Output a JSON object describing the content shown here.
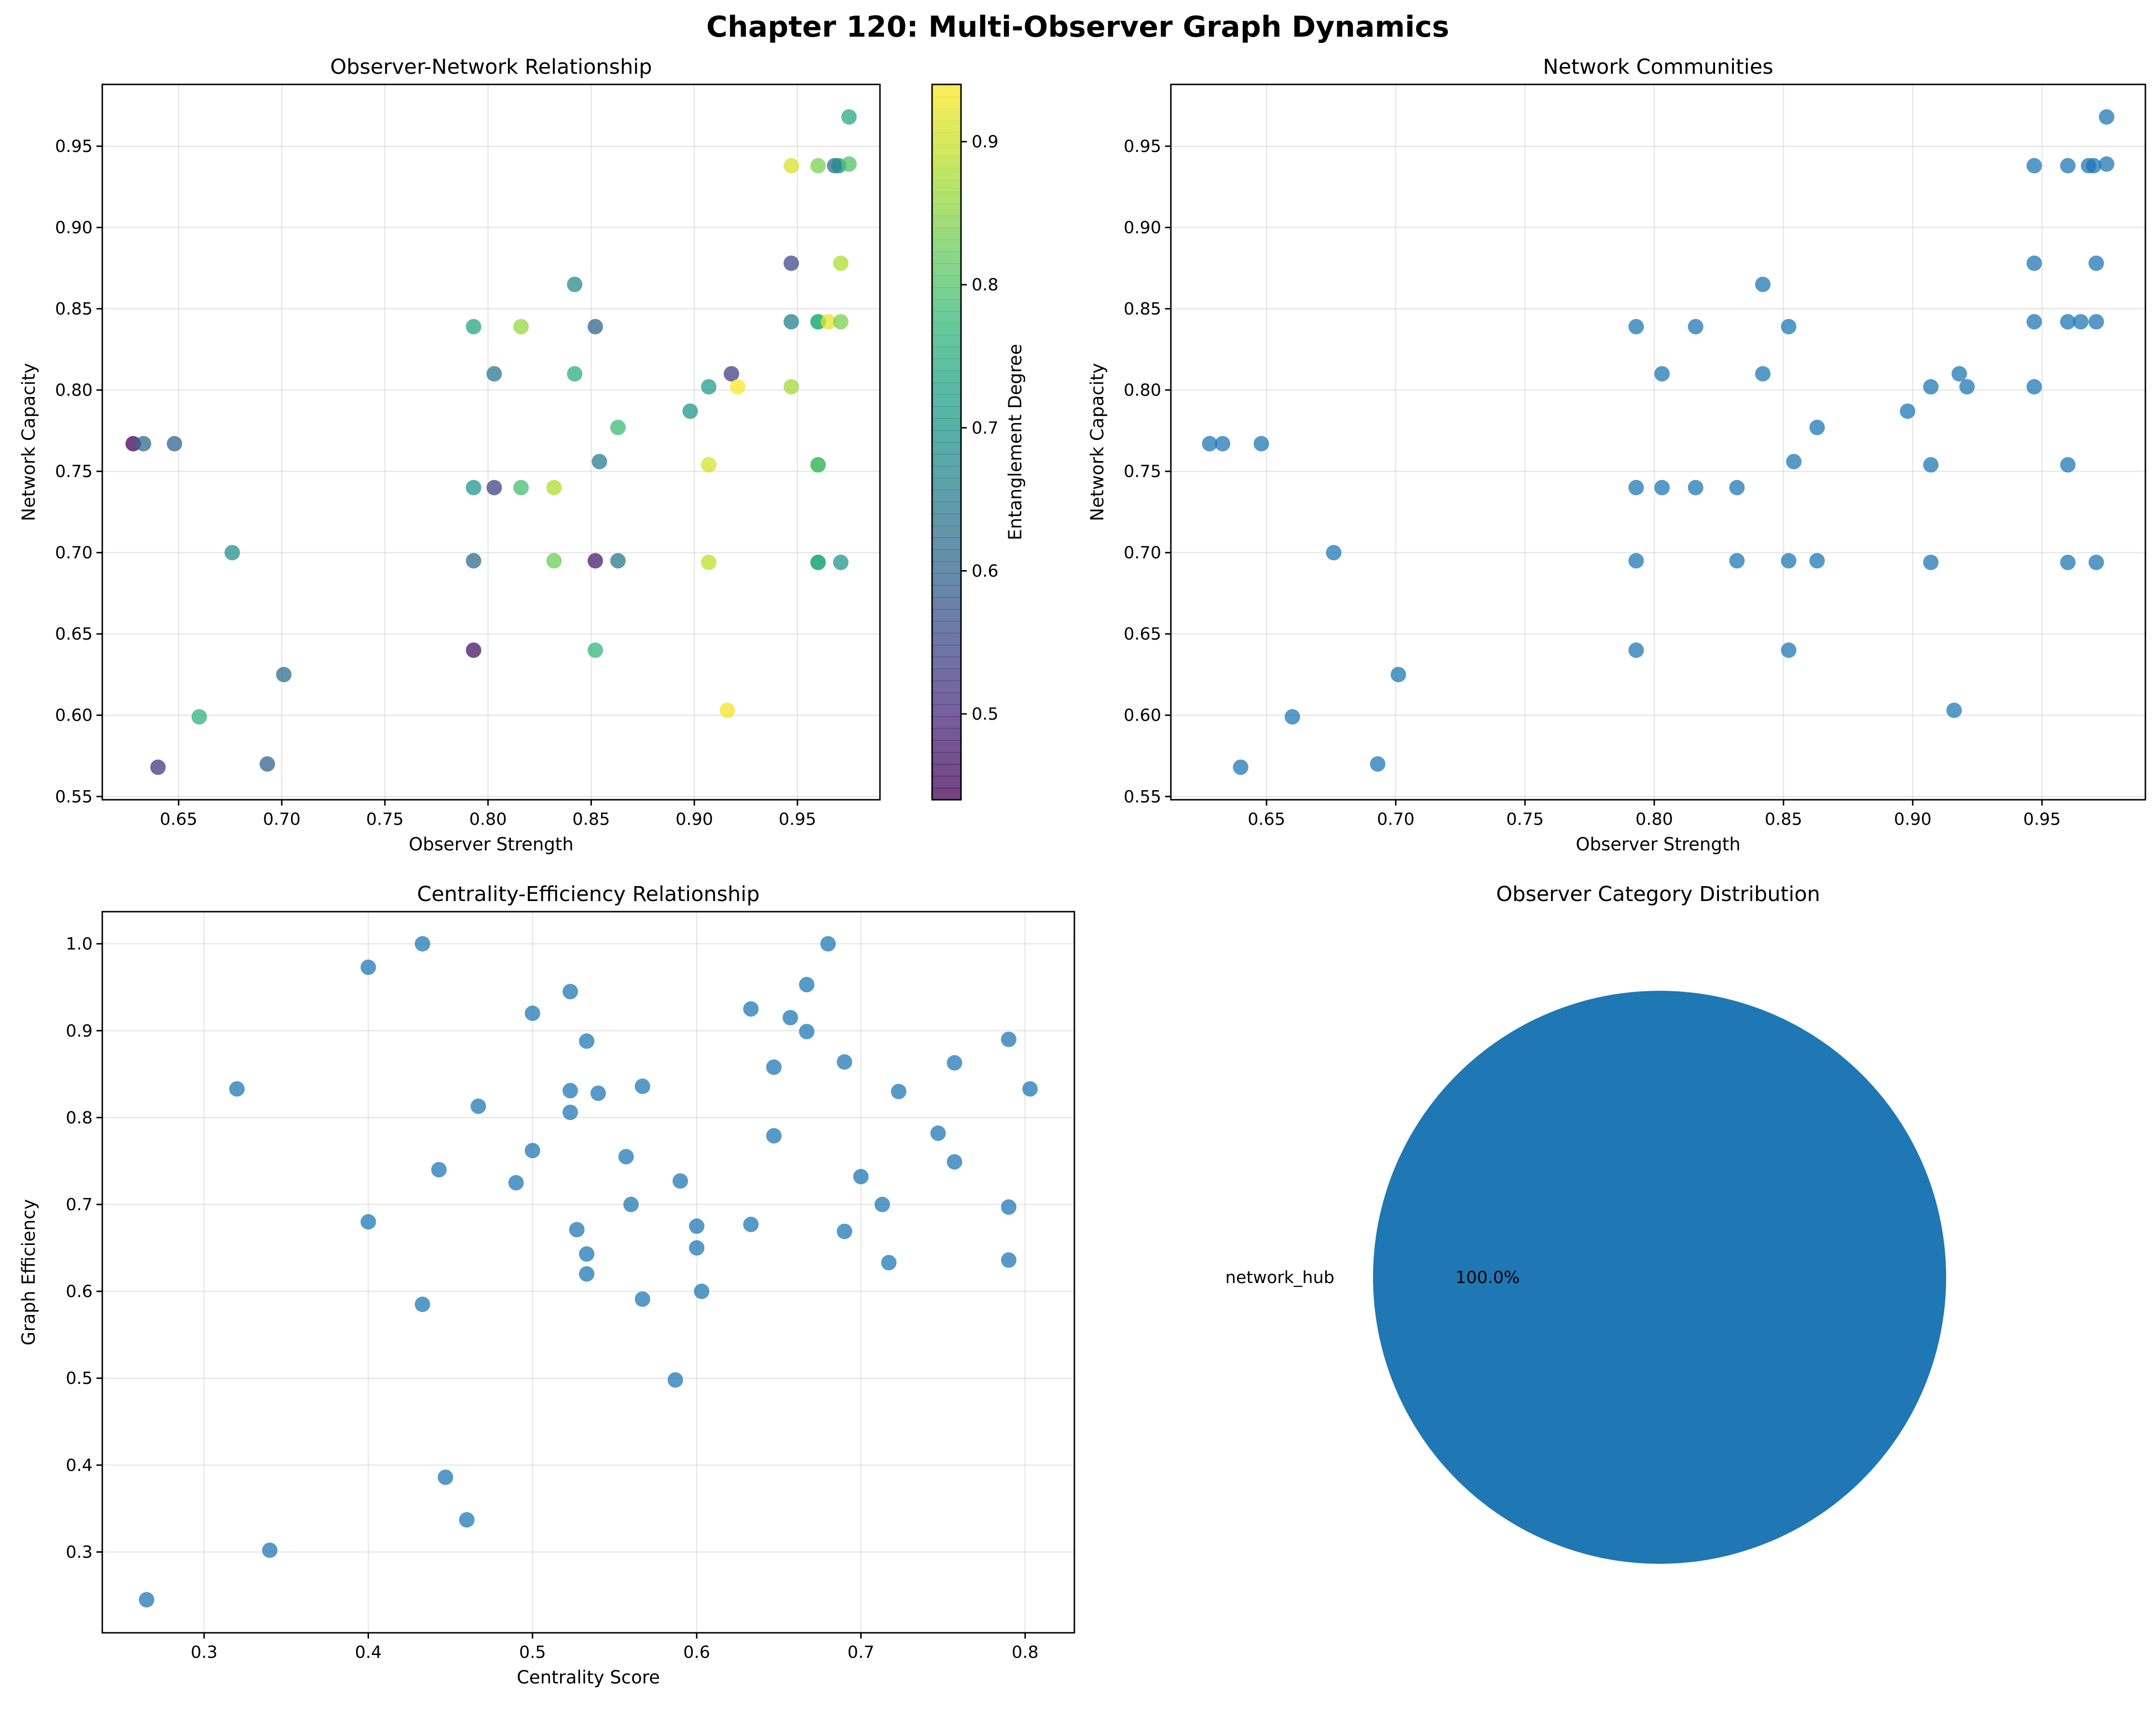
{
  "figure": {
    "title": "Chapter 120: Multi-Observer Graph Dynamics",
    "colors": {
      "point": "#1f77b4",
      "pie": "#1f77b4"
    }
  },
  "chart_data": [
    {
      "type": "scatter",
      "title": "Observer-Network Relationship",
      "xlabel": "Observer Strength",
      "ylabel": "Network Capacity",
      "xlim": [
        0.613,
        0.99
      ],
      "ylim": [
        0.548,
        0.988
      ],
      "xticks": [
        "0.65",
        "0.70",
        "0.75",
        "0.80",
        "0.85",
        "0.90",
        "0.95"
      ],
      "yticks": [
        "0.55",
        "0.60",
        "0.65",
        "0.70",
        "0.75",
        "0.80",
        "0.85",
        "0.90",
        "0.95"
      ],
      "colorbar": {
        "label": "Entanglement Degree",
        "colormap": "viridis",
        "range": [
          0.44,
          0.94
        ],
        "ticks": [
          "0.5",
          "0.6",
          "0.7",
          "0.8",
          "0.9"
        ]
      },
      "points": [
        {
          "x": 0.628,
          "y": 0.767,
          "c": 0.44
        },
        {
          "x": 0.633,
          "y": 0.767,
          "c": 0.61
        },
        {
          "x": 0.648,
          "y": 0.767,
          "c": 0.6
        },
        {
          "x": 0.64,
          "y": 0.568,
          "c": 0.52
        },
        {
          "x": 0.66,
          "y": 0.599,
          "c": 0.76
        },
        {
          "x": 0.676,
          "y": 0.7,
          "c": 0.69
        },
        {
          "x": 0.701,
          "y": 0.625,
          "c": 0.62
        },
        {
          "x": 0.693,
          "y": 0.57,
          "c": 0.6
        },
        {
          "x": 0.793,
          "y": 0.839,
          "c": 0.73
        },
        {
          "x": 0.793,
          "y": 0.74,
          "c": 0.7
        },
        {
          "x": 0.793,
          "y": 0.695,
          "c": 0.62
        },
        {
          "x": 0.793,
          "y": 0.64,
          "c": 0.47
        },
        {
          "x": 0.803,
          "y": 0.81,
          "c": 0.64
        },
        {
          "x": 0.803,
          "y": 0.74,
          "c": 0.54
        },
        {
          "x": 0.816,
          "y": 0.839,
          "c": 0.86
        },
        {
          "x": 0.816,
          "y": 0.74,
          "c": 0.79
        },
        {
          "x": 0.832,
          "y": 0.74,
          "c": 0.88
        },
        {
          "x": 0.832,
          "y": 0.695,
          "c": 0.83
        },
        {
          "x": 0.842,
          "y": 0.865,
          "c": 0.68
        },
        {
          "x": 0.842,
          "y": 0.81,
          "c": 0.75
        },
        {
          "x": 0.852,
          "y": 0.839,
          "c": 0.6
        },
        {
          "x": 0.854,
          "y": 0.756,
          "c": 0.65
        },
        {
          "x": 0.852,
          "y": 0.695,
          "c": 0.48
        },
        {
          "x": 0.852,
          "y": 0.64,
          "c": 0.77
        },
        {
          "x": 0.863,
          "y": 0.777,
          "c": 0.78
        },
        {
          "x": 0.863,
          "y": 0.695,
          "c": 0.64
        },
        {
          "x": 0.898,
          "y": 0.787,
          "c": 0.7
        },
        {
          "x": 0.907,
          "y": 0.802,
          "c": 0.72
        },
        {
          "x": 0.907,
          "y": 0.754,
          "c": 0.91
        },
        {
          "x": 0.907,
          "y": 0.694,
          "c": 0.89
        },
        {
          "x": 0.918,
          "y": 0.81,
          "c": 0.53
        },
        {
          "x": 0.921,
          "y": 0.802,
          "c": 0.94
        },
        {
          "x": 0.916,
          "y": 0.603,
          "c": 0.93
        },
        {
          "x": 0.947,
          "y": 0.938,
          "c": 0.91
        },
        {
          "x": 0.947,
          "y": 0.878,
          "c": 0.55
        },
        {
          "x": 0.947,
          "y": 0.842,
          "c": 0.66
        },
        {
          "x": 0.947,
          "y": 0.802,
          "c": 0.87
        },
        {
          "x": 0.96,
          "y": 0.938,
          "c": 0.84
        },
        {
          "x": 0.96,
          "y": 0.842,
          "c": 0.74
        },
        {
          "x": 0.96,
          "y": 0.842,
          "c": 0.77
        },
        {
          "x": 0.96,
          "y": 0.754,
          "c": 0.82
        },
        {
          "x": 0.96,
          "y": 0.754,
          "c": 0.79
        },
        {
          "x": 0.96,
          "y": 0.694,
          "c": 0.77
        },
        {
          "x": 0.96,
          "y": 0.694,
          "c": 0.74
        },
        {
          "x": 0.965,
          "y": 0.842,
          "c": 0.92
        },
        {
          "x": 0.968,
          "y": 0.938,
          "c": 0.62
        },
        {
          "x": 0.97,
          "y": 0.938,
          "c": 0.68
        },
        {
          "x": 0.971,
          "y": 0.878,
          "c": 0.88
        },
        {
          "x": 0.971,
          "y": 0.842,
          "c": 0.84
        },
        {
          "x": 0.971,
          "y": 0.694,
          "c": 0.7
        },
        {
          "x": 0.975,
          "y": 0.939,
          "c": 0.8
        },
        {
          "x": 0.975,
          "y": 0.968,
          "c": 0.74
        }
      ]
    },
    {
      "type": "scatter",
      "title": "Network Communities",
      "xlabel": "Observer Strength",
      "ylabel": "Network Capacity",
      "xlim": [
        0.613,
        0.99
      ],
      "ylim": [
        0.548,
        0.988
      ],
      "xticks": [
        "0.65",
        "0.70",
        "0.75",
        "0.80",
        "0.85",
        "0.90",
        "0.95"
      ],
      "yticks": [
        "0.55",
        "0.60",
        "0.65",
        "0.70",
        "0.75",
        "0.80",
        "0.85",
        "0.90",
        "0.95"
      ],
      "points": [
        {
          "x": 0.628,
          "y": 0.767
        },
        {
          "x": 0.633,
          "y": 0.767
        },
        {
          "x": 0.648,
          "y": 0.767
        },
        {
          "x": 0.64,
          "y": 0.568
        },
        {
          "x": 0.66,
          "y": 0.599
        },
        {
          "x": 0.676,
          "y": 0.7
        },
        {
          "x": 0.701,
          "y": 0.625
        },
        {
          "x": 0.693,
          "y": 0.57
        },
        {
          "x": 0.793,
          "y": 0.839
        },
        {
          "x": 0.793,
          "y": 0.74
        },
        {
          "x": 0.793,
          "y": 0.695
        },
        {
          "x": 0.793,
          "y": 0.64
        },
        {
          "x": 0.803,
          "y": 0.81
        },
        {
          "x": 0.803,
          "y": 0.74
        },
        {
          "x": 0.816,
          "y": 0.839
        },
        {
          "x": 0.816,
          "y": 0.74
        },
        {
          "x": 0.832,
          "y": 0.74
        },
        {
          "x": 0.832,
          "y": 0.695
        },
        {
          "x": 0.842,
          "y": 0.865
        },
        {
          "x": 0.842,
          "y": 0.81
        },
        {
          "x": 0.852,
          "y": 0.839
        },
        {
          "x": 0.854,
          "y": 0.756
        },
        {
          "x": 0.852,
          "y": 0.695
        },
        {
          "x": 0.852,
          "y": 0.64
        },
        {
          "x": 0.863,
          "y": 0.777
        },
        {
          "x": 0.863,
          "y": 0.695
        },
        {
          "x": 0.898,
          "y": 0.787
        },
        {
          "x": 0.907,
          "y": 0.802
        },
        {
          "x": 0.907,
          "y": 0.754
        },
        {
          "x": 0.907,
          "y": 0.694
        },
        {
          "x": 0.918,
          "y": 0.81
        },
        {
          "x": 0.921,
          "y": 0.802
        },
        {
          "x": 0.916,
          "y": 0.603
        },
        {
          "x": 0.947,
          "y": 0.938
        },
        {
          "x": 0.947,
          "y": 0.878
        },
        {
          "x": 0.947,
          "y": 0.842
        },
        {
          "x": 0.947,
          "y": 0.802
        },
        {
          "x": 0.96,
          "y": 0.938
        },
        {
          "x": 0.96,
          "y": 0.842
        },
        {
          "x": 0.96,
          "y": 0.754
        },
        {
          "x": 0.96,
          "y": 0.694
        },
        {
          "x": 0.965,
          "y": 0.842
        },
        {
          "x": 0.968,
          "y": 0.938
        },
        {
          "x": 0.97,
          "y": 0.938
        },
        {
          "x": 0.971,
          "y": 0.878
        },
        {
          "x": 0.971,
          "y": 0.842
        },
        {
          "x": 0.971,
          "y": 0.694
        },
        {
          "x": 0.975,
          "y": 0.939
        },
        {
          "x": 0.975,
          "y": 0.968
        }
      ]
    },
    {
      "type": "scatter",
      "title": "Centrality-Efficiency Relationship",
      "xlabel": "Centrality Score",
      "ylabel": "Graph Efficiency",
      "xlim": [
        0.238,
        0.83
      ],
      "ylim": [
        0.207,
        1.037
      ],
      "xticks": [
        "0.3",
        "0.4",
        "0.5",
        "0.6",
        "0.7",
        "0.8"
      ],
      "yticks": [
        "0.3",
        "0.4",
        "0.5",
        "0.6",
        "0.7",
        "0.8",
        "0.9",
        "1.0"
      ],
      "points": [
        {
          "x": 0.265,
          "y": 0.245
        },
        {
          "x": 0.34,
          "y": 0.302
        },
        {
          "x": 0.32,
          "y": 0.833
        },
        {
          "x": 0.4,
          "y": 0.973
        },
        {
          "x": 0.4,
          "y": 0.68
        },
        {
          "x": 0.433,
          "y": 1.0
        },
        {
          "x": 0.433,
          "y": 0.585
        },
        {
          "x": 0.443,
          "y": 0.74
        },
        {
          "x": 0.447,
          "y": 0.386
        },
        {
          "x": 0.46,
          "y": 0.337
        },
        {
          "x": 0.467,
          "y": 0.813
        },
        {
          "x": 0.49,
          "y": 0.725
        },
        {
          "x": 0.5,
          "y": 0.92
        },
        {
          "x": 0.5,
          "y": 0.762
        },
        {
          "x": 0.523,
          "y": 0.945
        },
        {
          "x": 0.523,
          "y": 0.831
        },
        {
          "x": 0.523,
          "y": 0.806
        },
        {
          "x": 0.527,
          "y": 0.671
        },
        {
          "x": 0.533,
          "y": 0.888
        },
        {
          "x": 0.533,
          "y": 0.643
        },
        {
          "x": 0.533,
          "y": 0.62
        },
        {
          "x": 0.54,
          "y": 0.828
        },
        {
          "x": 0.557,
          "y": 0.755
        },
        {
          "x": 0.56,
          "y": 0.7
        },
        {
          "x": 0.567,
          "y": 0.836
        },
        {
          "x": 0.567,
          "y": 0.591
        },
        {
          "x": 0.587,
          "y": 0.498
        },
        {
          "x": 0.59,
          "y": 0.727
        },
        {
          "x": 0.6,
          "y": 0.675
        },
        {
          "x": 0.6,
          "y": 0.65
        },
        {
          "x": 0.603,
          "y": 0.6
        },
        {
          "x": 0.633,
          "y": 0.925
        },
        {
          "x": 0.633,
          "y": 0.677
        },
        {
          "x": 0.647,
          "y": 0.858
        },
        {
          "x": 0.647,
          "y": 0.779
        },
        {
          "x": 0.657,
          "y": 0.915
        },
        {
          "x": 0.667,
          "y": 0.953
        },
        {
          "x": 0.667,
          "y": 0.899
        },
        {
          "x": 0.68,
          "y": 1.0
        },
        {
          "x": 0.69,
          "y": 0.864
        },
        {
          "x": 0.69,
          "y": 0.669
        },
        {
          "x": 0.7,
          "y": 0.732
        },
        {
          "x": 0.713,
          "y": 0.7
        },
        {
          "x": 0.717,
          "y": 0.633
        },
        {
          "x": 0.723,
          "y": 0.83
        },
        {
          "x": 0.747,
          "y": 0.782
        },
        {
          "x": 0.757,
          "y": 0.863
        },
        {
          "x": 0.757,
          "y": 0.749
        },
        {
          "x": 0.79,
          "y": 0.89
        },
        {
          "x": 0.79,
          "y": 0.697
        },
        {
          "x": 0.79,
          "y": 0.636
        },
        {
          "x": 0.803,
          "y": 0.833
        }
      ]
    },
    {
      "type": "pie",
      "title": "Observer Category Distribution",
      "slices": [
        {
          "label": "network_hub",
          "value": 100.0,
          "pct": "100.0%"
        }
      ]
    }
  ]
}
